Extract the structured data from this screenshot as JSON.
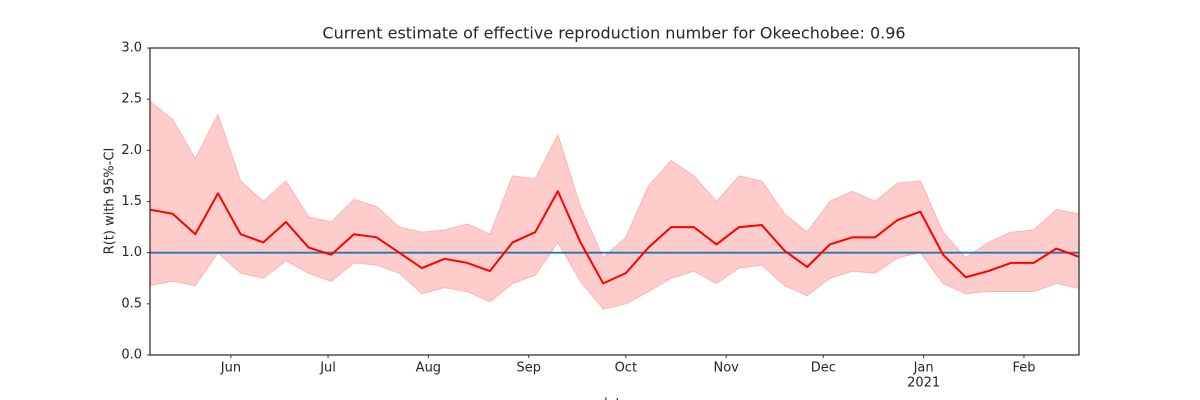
{
  "chart_data": {
    "type": "line",
    "title": "Current estimate of effective reproduction number for Okeechobee: 0.96",
    "y_label": "R(t) with 95%-CI",
    "x_label": "date",
    "x": [
      "2020-05-07",
      "2020-05-14",
      "2020-05-21",
      "2020-05-28",
      "2020-06-04",
      "2020-06-11",
      "2020-06-18",
      "2020-06-25",
      "2020-07-02",
      "2020-07-09",
      "2020-07-16",
      "2020-07-23",
      "2020-07-30",
      "2020-08-06",
      "2020-08-13",
      "2020-08-20",
      "2020-08-27",
      "2020-09-03",
      "2020-09-10",
      "2020-09-17",
      "2020-09-24",
      "2020-10-01",
      "2020-10-08",
      "2020-10-15",
      "2020-10-22",
      "2020-10-29",
      "2020-11-05",
      "2020-11-12",
      "2020-11-19",
      "2020-11-26",
      "2020-12-03",
      "2020-12-10",
      "2020-12-17",
      "2020-12-24",
      "2020-12-31",
      "2021-01-07",
      "2021-01-14",
      "2021-01-21",
      "2021-01-28",
      "2021-02-04",
      "2021-02-11",
      "2021-02-18"
    ],
    "series": [
      {
        "color": "#ff0000",
        "values": [
          1.42,
          1.38,
          1.18,
          1.58,
          1.18,
          1.1,
          1.3,
          1.05,
          0.98,
          1.18,
          1.15,
          1.0,
          0.85,
          0.94,
          0.9,
          0.82,
          1.1,
          1.2,
          1.6,
          1.1,
          0.7,
          0.8,
          1.05,
          1.25,
          1.25,
          1.08,
          1.25,
          1.27,
          1.02,
          0.86,
          1.08,
          1.15,
          1.15,
          1.32,
          1.4,
          0.98,
          0.76,
          0.82,
          0.9,
          0.9,
          1.04,
          0.96
        ]
      }
    ],
    "band": {
      "color": "#ffcccc",
      "edge_color": "#ffb3b3",
      "lower": [
        0.68,
        0.72,
        0.68,
        1.0,
        0.8,
        0.75,
        0.92,
        0.8,
        0.72,
        0.9,
        0.88,
        0.8,
        0.6,
        0.66,
        0.62,
        0.52,
        0.7,
        0.78,
        1.1,
        0.72,
        0.45,
        0.5,
        0.62,
        0.75,
        0.82,
        0.7,
        0.85,
        0.88,
        0.68,
        0.58,
        0.75,
        0.82,
        0.8,
        0.95,
        1.0,
        0.7,
        0.6,
        0.62,
        0.62,
        0.62,
        0.7,
        0.65
      ],
      "upper": [
        2.48,
        2.3,
        1.92,
        2.35,
        1.7,
        1.5,
        1.7,
        1.35,
        1.3,
        1.52,
        1.45,
        1.25,
        1.2,
        1.22,
        1.28,
        1.18,
        1.75,
        1.72,
        2.15,
        1.45,
        0.95,
        1.15,
        1.65,
        1.9,
        1.75,
        1.5,
        1.75,
        1.7,
        1.38,
        1.2,
        1.5,
        1.6,
        1.5,
        1.68,
        1.7,
        1.2,
        0.95,
        1.1,
        1.2,
        1.22,
        1.42,
        1.38
      ]
    },
    "reference_line": {
      "value": 1.0,
      "color": "#1f77b4"
    },
    "xlim": [
      "2020-05-07",
      "2021-02-18"
    ],
    "xticks": [
      {
        "value": "2020-06-01",
        "label": "Jun"
      },
      {
        "value": "2020-07-01",
        "label": "Jul"
      },
      {
        "value": "2020-08-01",
        "label": "Aug"
      },
      {
        "value": "2020-09-01",
        "label": "Sep"
      },
      {
        "value": "2020-10-01",
        "label": "Oct"
      },
      {
        "value": "2020-11-01",
        "label": "Nov"
      },
      {
        "value": "2020-12-01",
        "label": "Dec"
      },
      {
        "value": "2021-01-01",
        "label": "Jan",
        "sublabel": "2021"
      },
      {
        "value": "2021-02-01",
        "label": "Feb"
      }
    ],
    "ylim": [
      0,
      3
    ],
    "yticks": [
      {
        "value": 0,
        "label": "0.0"
      },
      {
        "value": 0.5,
        "label": "0.5"
      },
      {
        "value": 1,
        "label": "1.0"
      },
      {
        "value": 1.5,
        "label": "1.5"
      },
      {
        "value": 2,
        "label": "2.0"
      },
      {
        "value": 2.5,
        "label": "2.5"
      },
      {
        "value": 3,
        "label": "3.0"
      }
    ],
    "grid": false
  }
}
